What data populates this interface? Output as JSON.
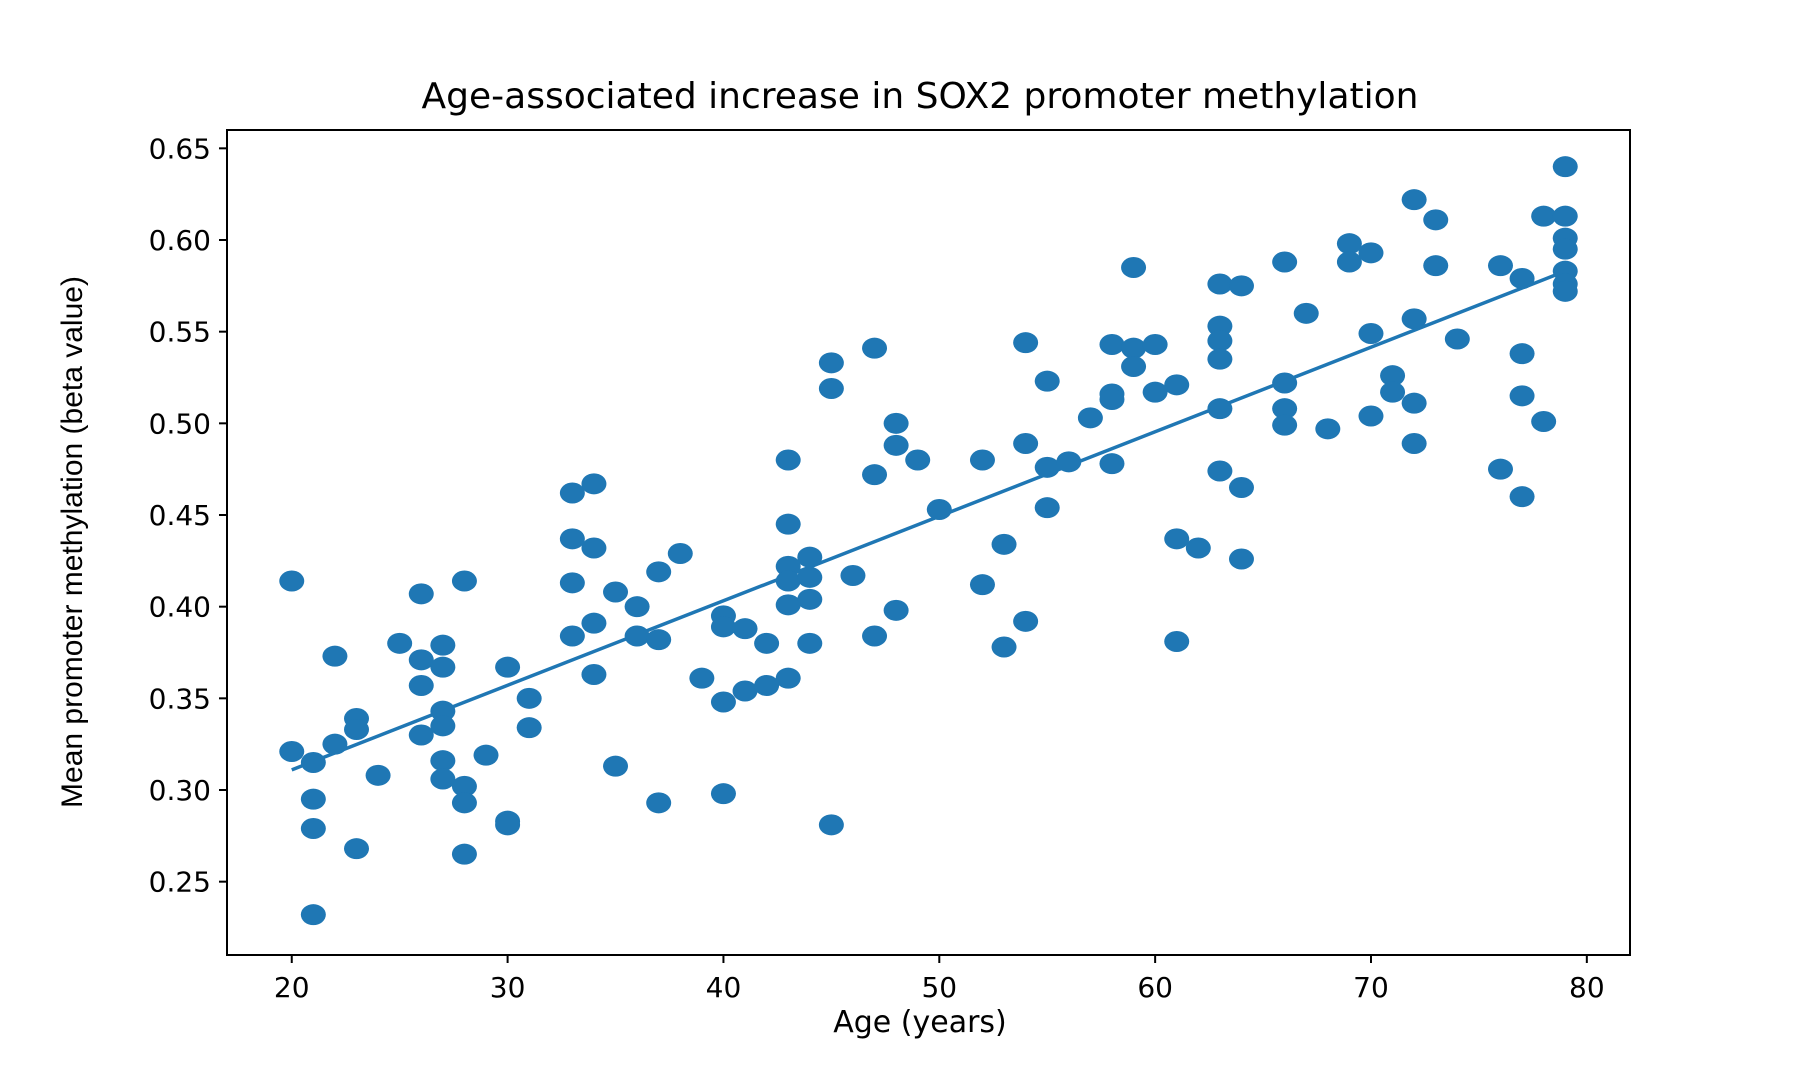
{
  "chart_data": {
    "type": "scatter",
    "title": "Age-associated increase in SOX2 promoter methylation",
    "xlabel": "Age (years)",
    "ylabel": "Mean promoter methylation (beta value)",
    "xlim": [
      17,
      82
    ],
    "ylim": [
      0.21,
      0.66
    ],
    "xticks": [
      20,
      30,
      40,
      50,
      60,
      70,
      80
    ],
    "yticks": [
      0.25,
      0.3,
      0.35,
      0.4,
      0.45,
      0.5,
      0.55,
      0.6,
      0.65
    ],
    "xtick_labels": [
      "20",
      "30",
      "40",
      "50",
      "60",
      "70",
      "80"
    ],
    "ytick_labels": [
      "0.25",
      "0.30",
      "0.35",
      "0.40",
      "0.45",
      "0.50",
      "0.55",
      "0.60",
      "0.65"
    ],
    "grid": false,
    "color": "#1f77b4",
    "points": [
      [
        20,
        0.414
      ],
      [
        20,
        0.321
      ],
      [
        21,
        0.315
      ],
      [
        21,
        0.295
      ],
      [
        21,
        0.279
      ],
      [
        21,
        0.232
      ],
      [
        22,
        0.373
      ],
      [
        22,
        0.325
      ],
      [
        23,
        0.339
      ],
      [
        23,
        0.333
      ],
      [
        23,
        0.268
      ],
      [
        24,
        0.308
      ],
      [
        25,
        0.38
      ],
      [
        26,
        0.407
      ],
      [
        26,
        0.371
      ],
      [
        26,
        0.357
      ],
      [
        26,
        0.33
      ],
      [
        27,
        0.379
      ],
      [
        27,
        0.367
      ],
      [
        27,
        0.343
      ],
      [
        27,
        0.335
      ],
      [
        27,
        0.316
      ],
      [
        27,
        0.306
      ],
      [
        28,
        0.414
      ],
      [
        28,
        0.302
      ],
      [
        28,
        0.293
      ],
      [
        28,
        0.265
      ],
      [
        29,
        0.319
      ],
      [
        30,
        0.367
      ],
      [
        30,
        0.283
      ],
      [
        30,
        0.281
      ],
      [
        31,
        0.35
      ],
      [
        31,
        0.334
      ],
      [
        33,
        0.462
      ],
      [
        33,
        0.437
      ],
      [
        33,
        0.413
      ],
      [
        33,
        0.384
      ],
      [
        34,
        0.467
      ],
      [
        34,
        0.432
      ],
      [
        34,
        0.391
      ],
      [
        34,
        0.363
      ],
      [
        35,
        0.408
      ],
      [
        35,
        0.313
      ],
      [
        36,
        0.4
      ],
      [
        36,
        0.384
      ],
      [
        37,
        0.419
      ],
      [
        37,
        0.382
      ],
      [
        37,
        0.293
      ],
      [
        38,
        0.429
      ],
      [
        39,
        0.361
      ],
      [
        40,
        0.395
      ],
      [
        40,
        0.389
      ],
      [
        40,
        0.348
      ],
      [
        40,
        0.298
      ],
      [
        41,
        0.388
      ],
      [
        41,
        0.354
      ],
      [
        42,
        0.38
      ],
      [
        42,
        0.357
      ],
      [
        43,
        0.48
      ],
      [
        43,
        0.445
      ],
      [
        43,
        0.422
      ],
      [
        43,
        0.414
      ],
      [
        43,
        0.401
      ],
      [
        43,
        0.361
      ],
      [
        44,
        0.427
      ],
      [
        44,
        0.416
      ],
      [
        44,
        0.404
      ],
      [
        44,
        0.38
      ],
      [
        45,
        0.533
      ],
      [
        45,
        0.519
      ],
      [
        45,
        0.281
      ],
      [
        46,
        0.417
      ],
      [
        47,
        0.541
      ],
      [
        47,
        0.472
      ],
      [
        47,
        0.384
      ],
      [
        48,
        0.5
      ],
      [
        48,
        0.488
      ],
      [
        48,
        0.398
      ],
      [
        49,
        0.48
      ],
      [
        50,
        0.453
      ],
      [
        52,
        0.48
      ],
      [
        52,
        0.412
      ],
      [
        53,
        0.434
      ],
      [
        53,
        0.378
      ],
      [
        54,
        0.544
      ],
      [
        54,
        0.489
      ],
      [
        54,
        0.392
      ],
      [
        55,
        0.523
      ],
      [
        55,
        0.476
      ],
      [
        55,
        0.454
      ],
      [
        56,
        0.479
      ],
      [
        57,
        0.503
      ],
      [
        58,
        0.543
      ],
      [
        58,
        0.516
      ],
      [
        58,
        0.513
      ],
      [
        58,
        0.478
      ],
      [
        59,
        0.585
      ],
      [
        59,
        0.541
      ],
      [
        59,
        0.531
      ],
      [
        60,
        0.543
      ],
      [
        60,
        0.517
      ],
      [
        61,
        0.521
      ],
      [
        61,
        0.437
      ],
      [
        61,
        0.381
      ],
      [
        62,
        0.432
      ],
      [
        63,
        0.576
      ],
      [
        63,
        0.553
      ],
      [
        63,
        0.545
      ],
      [
        63,
        0.535
      ],
      [
        63,
        0.508
      ],
      [
        63,
        0.474
      ],
      [
        64,
        0.575
      ],
      [
        64,
        0.465
      ],
      [
        64,
        0.426
      ],
      [
        66,
        0.588
      ],
      [
        66,
        0.522
      ],
      [
        66,
        0.508
      ],
      [
        66,
        0.499
      ],
      [
        67,
        0.56
      ],
      [
        68,
        0.497
      ],
      [
        69,
        0.598
      ],
      [
        69,
        0.588
      ],
      [
        70,
        0.593
      ],
      [
        70,
        0.549
      ],
      [
        70,
        0.504
      ],
      [
        71,
        0.526
      ],
      [
        71,
        0.517
      ],
      [
        72,
        0.622
      ],
      [
        72,
        0.557
      ],
      [
        72,
        0.511
      ],
      [
        72,
        0.489
      ],
      [
        73,
        0.611
      ],
      [
        73,
        0.586
      ],
      [
        74,
        0.546
      ],
      [
        76,
        0.586
      ],
      [
        76,
        0.475
      ],
      [
        77,
        0.579
      ],
      [
        77,
        0.538
      ],
      [
        77,
        0.515
      ],
      [
        77,
        0.46
      ],
      [
        78,
        0.613
      ],
      [
        78,
        0.501
      ],
      [
        79,
        0.64
      ],
      [
        79,
        0.613
      ],
      [
        79,
        0.601
      ],
      [
        79,
        0.595
      ],
      [
        79,
        0.583
      ],
      [
        79,
        0.576
      ],
      [
        79,
        0.572
      ]
    ],
    "trendline": {
      "x": [
        20,
        79
      ],
      "y": [
        0.311,
        0.583
      ]
    }
  }
}
